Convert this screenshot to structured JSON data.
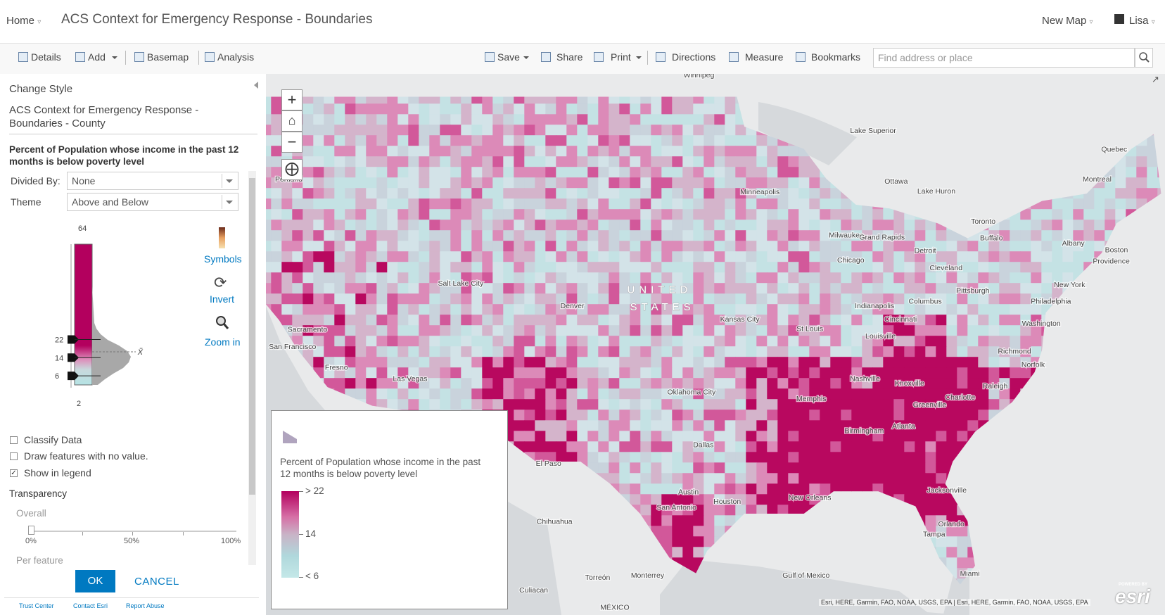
{
  "header": {
    "home": "Home",
    "title": "ACS Context for Emergency Response - Boundaries",
    "new_map": "New Map",
    "user": "Lisa"
  },
  "toolbar": {
    "left": [
      "Details",
      "Add",
      "Basemap",
      "Analysis"
    ],
    "right": [
      "Save",
      "Share",
      "Print",
      "Directions",
      "Measure",
      "Bookmarks"
    ],
    "search_placeholder": "Find address or place"
  },
  "panel": {
    "heading": "Change Style",
    "layer": "ACS Context for Emergency Response - Boundaries - County",
    "field": "Percent of Population whose income in the past 12 months is below poverty level",
    "divided_by_label": "Divided By:",
    "divided_by": "None",
    "theme_label": "Theme",
    "theme": "Above and Below",
    "histogram": {
      "max": 64,
      "handles": [
        22,
        14,
        6
      ],
      "min": 2,
      "mean_symbol": "x̄"
    },
    "actions": [
      "Symbols",
      "Invert",
      "Zoom in"
    ],
    "options": [
      {
        "label": "Classify Data",
        "checked": false
      },
      {
        "label": "Draw features with no value.",
        "checked": false
      },
      {
        "label": "Show in legend",
        "checked": true
      }
    ],
    "transparency": "Transparency",
    "overall": "Overall",
    "slider_ticks": [
      "0%",
      "50%",
      "100%"
    ],
    "per_feature": "Per feature",
    "ok": "OK",
    "cancel": "CANCEL",
    "footer": [
      "Trust Center",
      "Contact Esri",
      "Report Abuse"
    ]
  },
  "map": {
    "labels": [
      "Winnipeg",
      "Portland",
      "Minneapolis",
      "Lake Superior",
      "Lake Huron",
      "Quebec",
      "Ottawa",
      "Montreal",
      "Toronto",
      "Buffalo",
      "Albany",
      "Boston",
      "Providence",
      "Milwaukee",
      "Grand Rapids",
      "Detroit",
      "Chicago",
      "Cleveland",
      "Salt Lake City",
      "UNITED",
      "STATES",
      "Denver",
      "Pittsburgh",
      "New York",
      "Philadelphia",
      "Columbus",
      "Indianapolis",
      "Washington",
      "Sacramento",
      "San Francisco",
      "Kansas City",
      "St Louis",
      "Cincinnati",
      "Louisville",
      "Richmond",
      "Norfolk",
      "Fresno",
      "Las Vegas",
      "Nashville",
      "Knoxville",
      "Raleigh",
      "Charlotte",
      "Oklahoma City",
      "Memphis",
      "Greenville",
      "Atlanta",
      "Birmingham",
      "Dallas",
      "El Paso",
      "Austin",
      "Houston",
      "San Antonio",
      "New Orleans",
      "Jacksonville",
      "Orlando",
      "Tampa",
      "Chihuahua",
      "Torreón",
      "Monterrey",
      "Culiacan",
      "Miami",
      "Gulf of Mexico",
      "MÉXICO"
    ],
    "attribution": "Esri, HERE, Garmin, FAO, NOAA, USGS, EPA | Esri, HERE, Garmin, FAO, NOAA, USGS, EPA",
    "logo_small": "POWERED BY",
    "logo": "esri"
  },
  "legend": {
    "title": "Percent of Population whose income in the past 12 months is below poverty level",
    "labels": [
      "> 22",
      "14",
      "< 6"
    ]
  }
}
